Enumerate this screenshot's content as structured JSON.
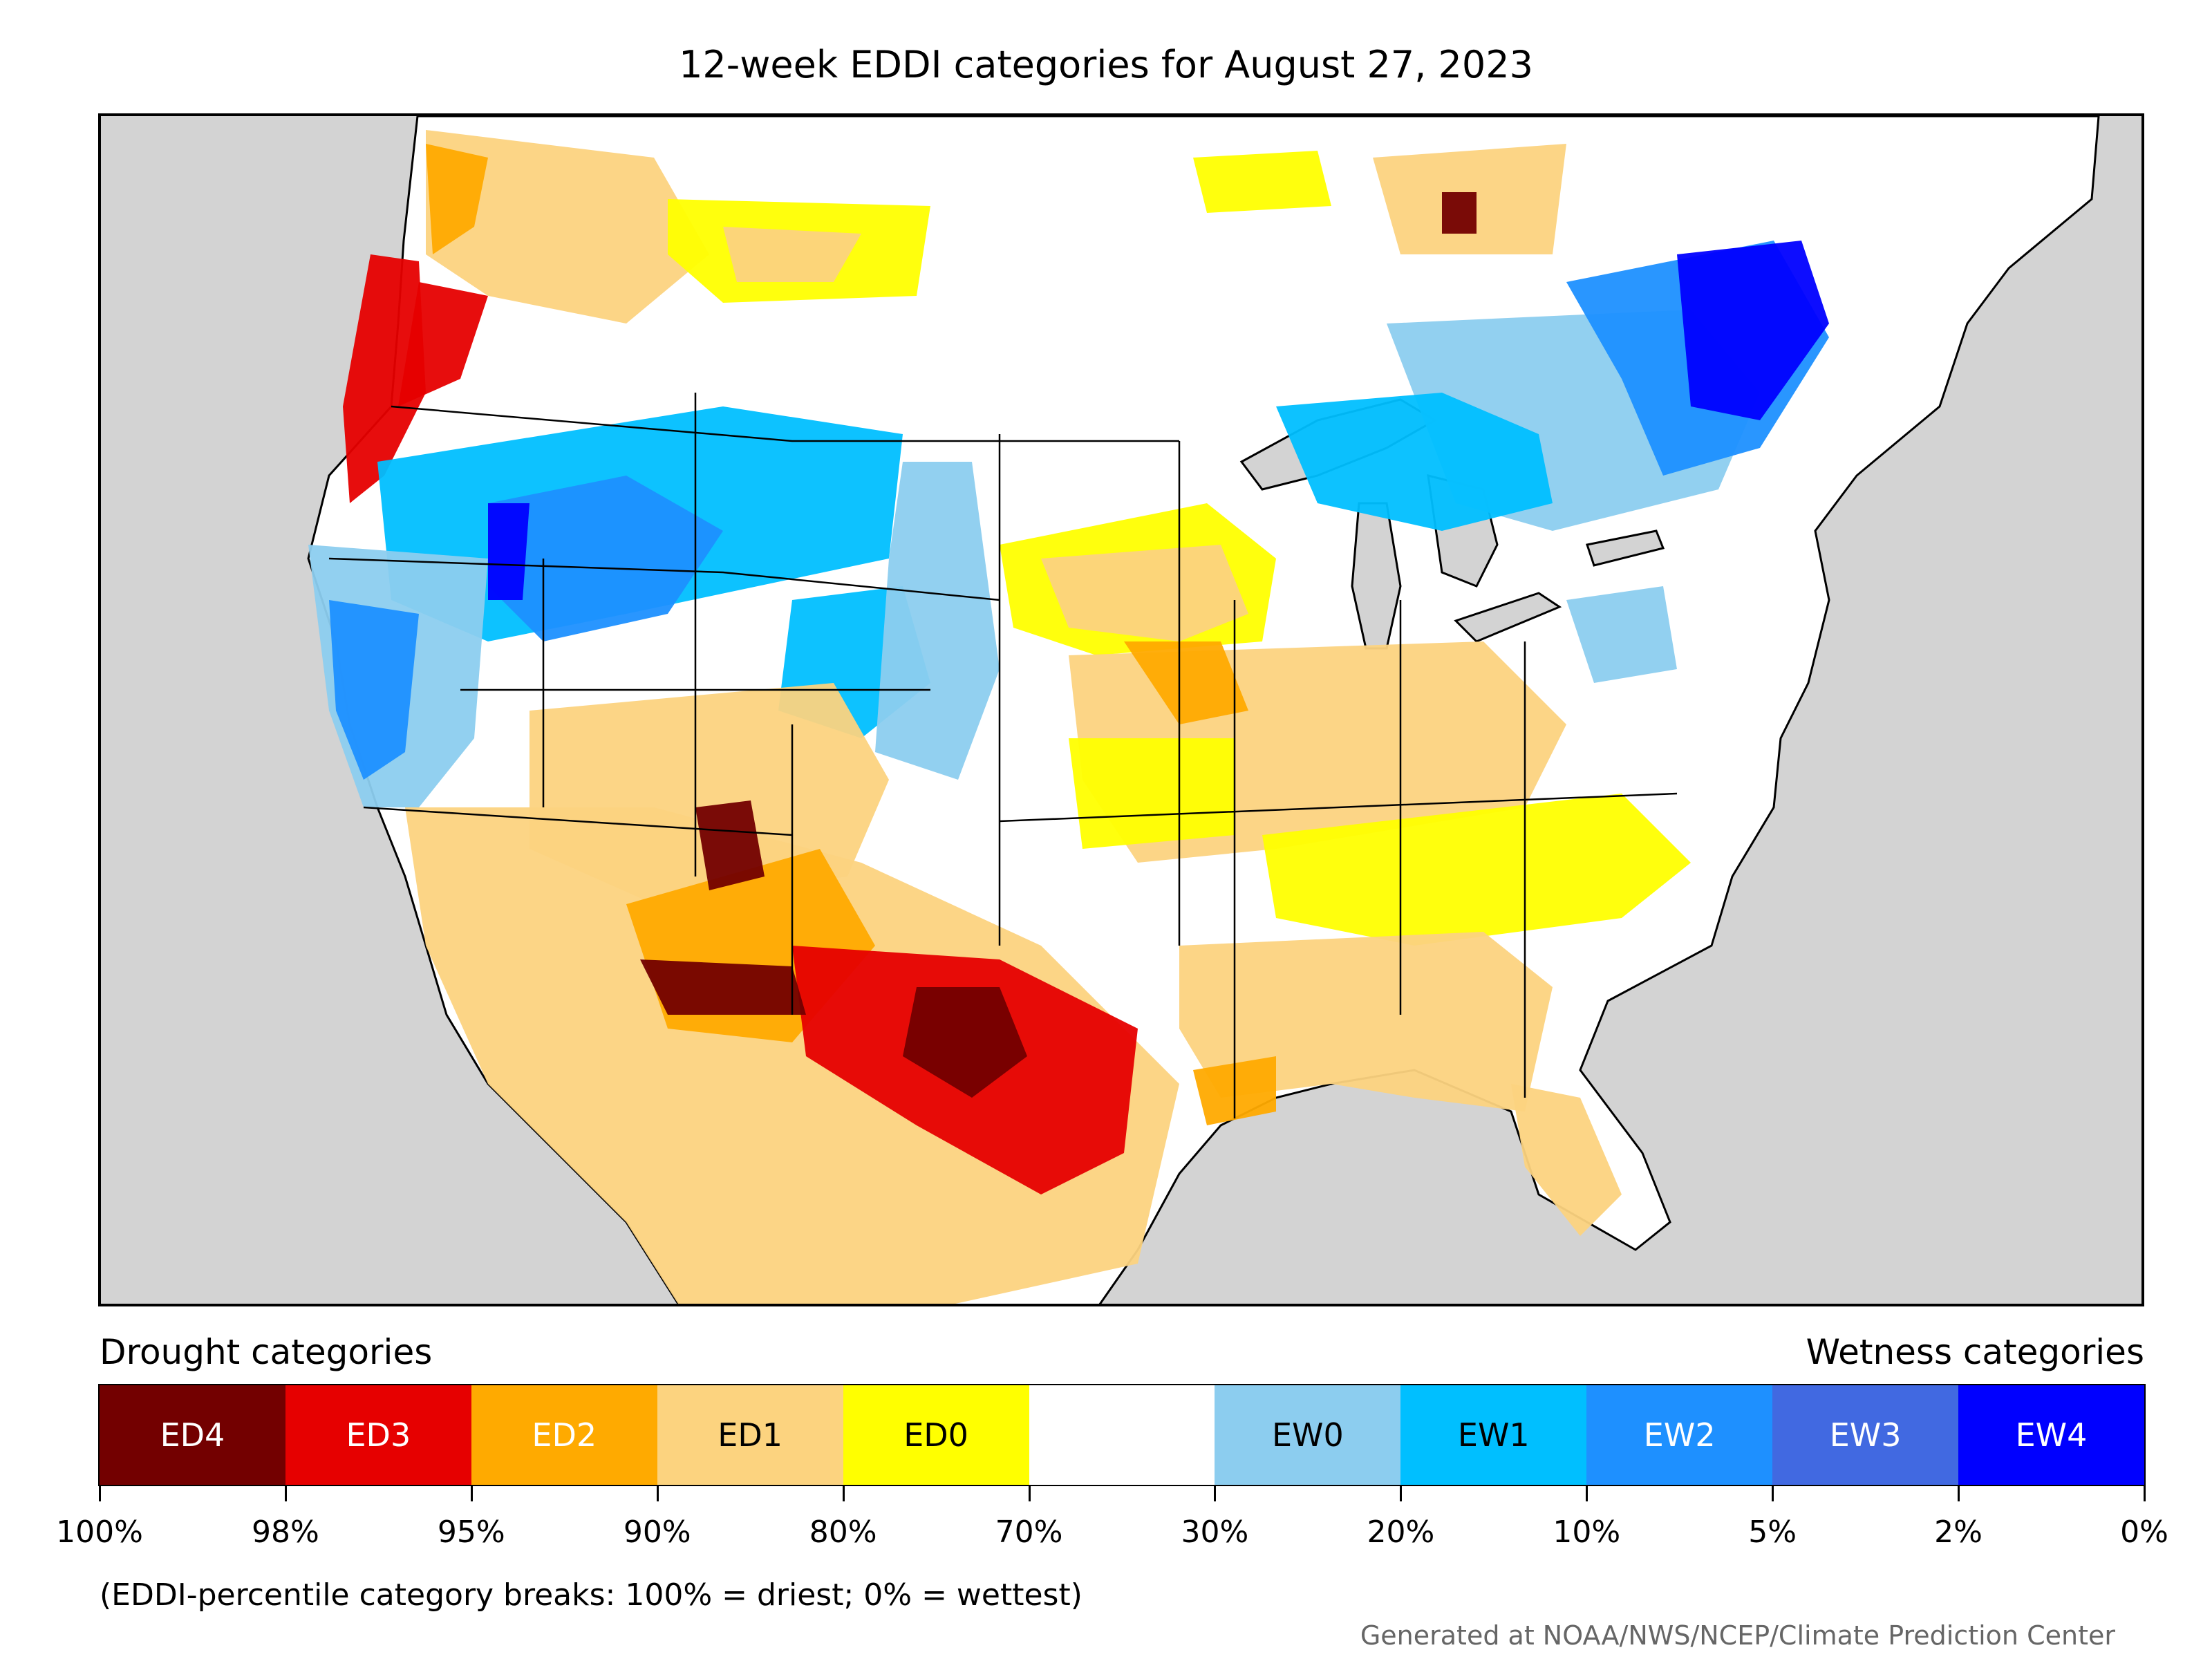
{
  "title": "12-week EDDI categories for August 27, 2023",
  "legend": {
    "drought_heading": "Drought categories",
    "wetness_heading": "Wetness categories",
    "categories": [
      {
        "label": "ED4",
        "color": "#730000",
        "text_color": "#ffffff"
      },
      {
        "label": "ED3",
        "color": "#e60000",
        "text_color": "#ffffff"
      },
      {
        "label": "ED2",
        "color": "#ffaa00",
        "text_color": "#ffffff"
      },
      {
        "label": "ED1",
        "color": "#fcd37f",
        "text_color": "#000000"
      },
      {
        "label": "ED0",
        "color": "#ffff00",
        "text_color": "#000000"
      },
      {
        "label": "",
        "color": "#ffffff",
        "text_color": "#000000"
      },
      {
        "label": "EW0",
        "color": "#8ccdef",
        "text_color": "#000000"
      },
      {
        "label": "EW1",
        "color": "#00bfff",
        "text_color": "#000000"
      },
      {
        "label": "EW2",
        "color": "#1e90ff",
        "text_color": "#ffffff"
      },
      {
        "label": "EW3",
        "color": "#4169e1",
        "text_color": "#ffffff"
      },
      {
        "label": "EW4",
        "color": "#0000ff",
        "text_color": "#ffffff"
      }
    ],
    "breaks": [
      "100%",
      "98%",
      "95%",
      "90%",
      "80%",
      "70%",
      "30%",
      "20%",
      "10%",
      "5%",
      "2%",
      "0%"
    ]
  },
  "footnote": "(EDDI-percentile category breaks: 100% = driest; 0% = wettest)",
  "credit": "Generated at NOAA/NWS/NCEP/Climate Prediction Center",
  "map": {
    "ocean_color": "#d3d3d3",
    "land_color": "#ffffff",
    "boundary_color": "#000000"
  }
}
